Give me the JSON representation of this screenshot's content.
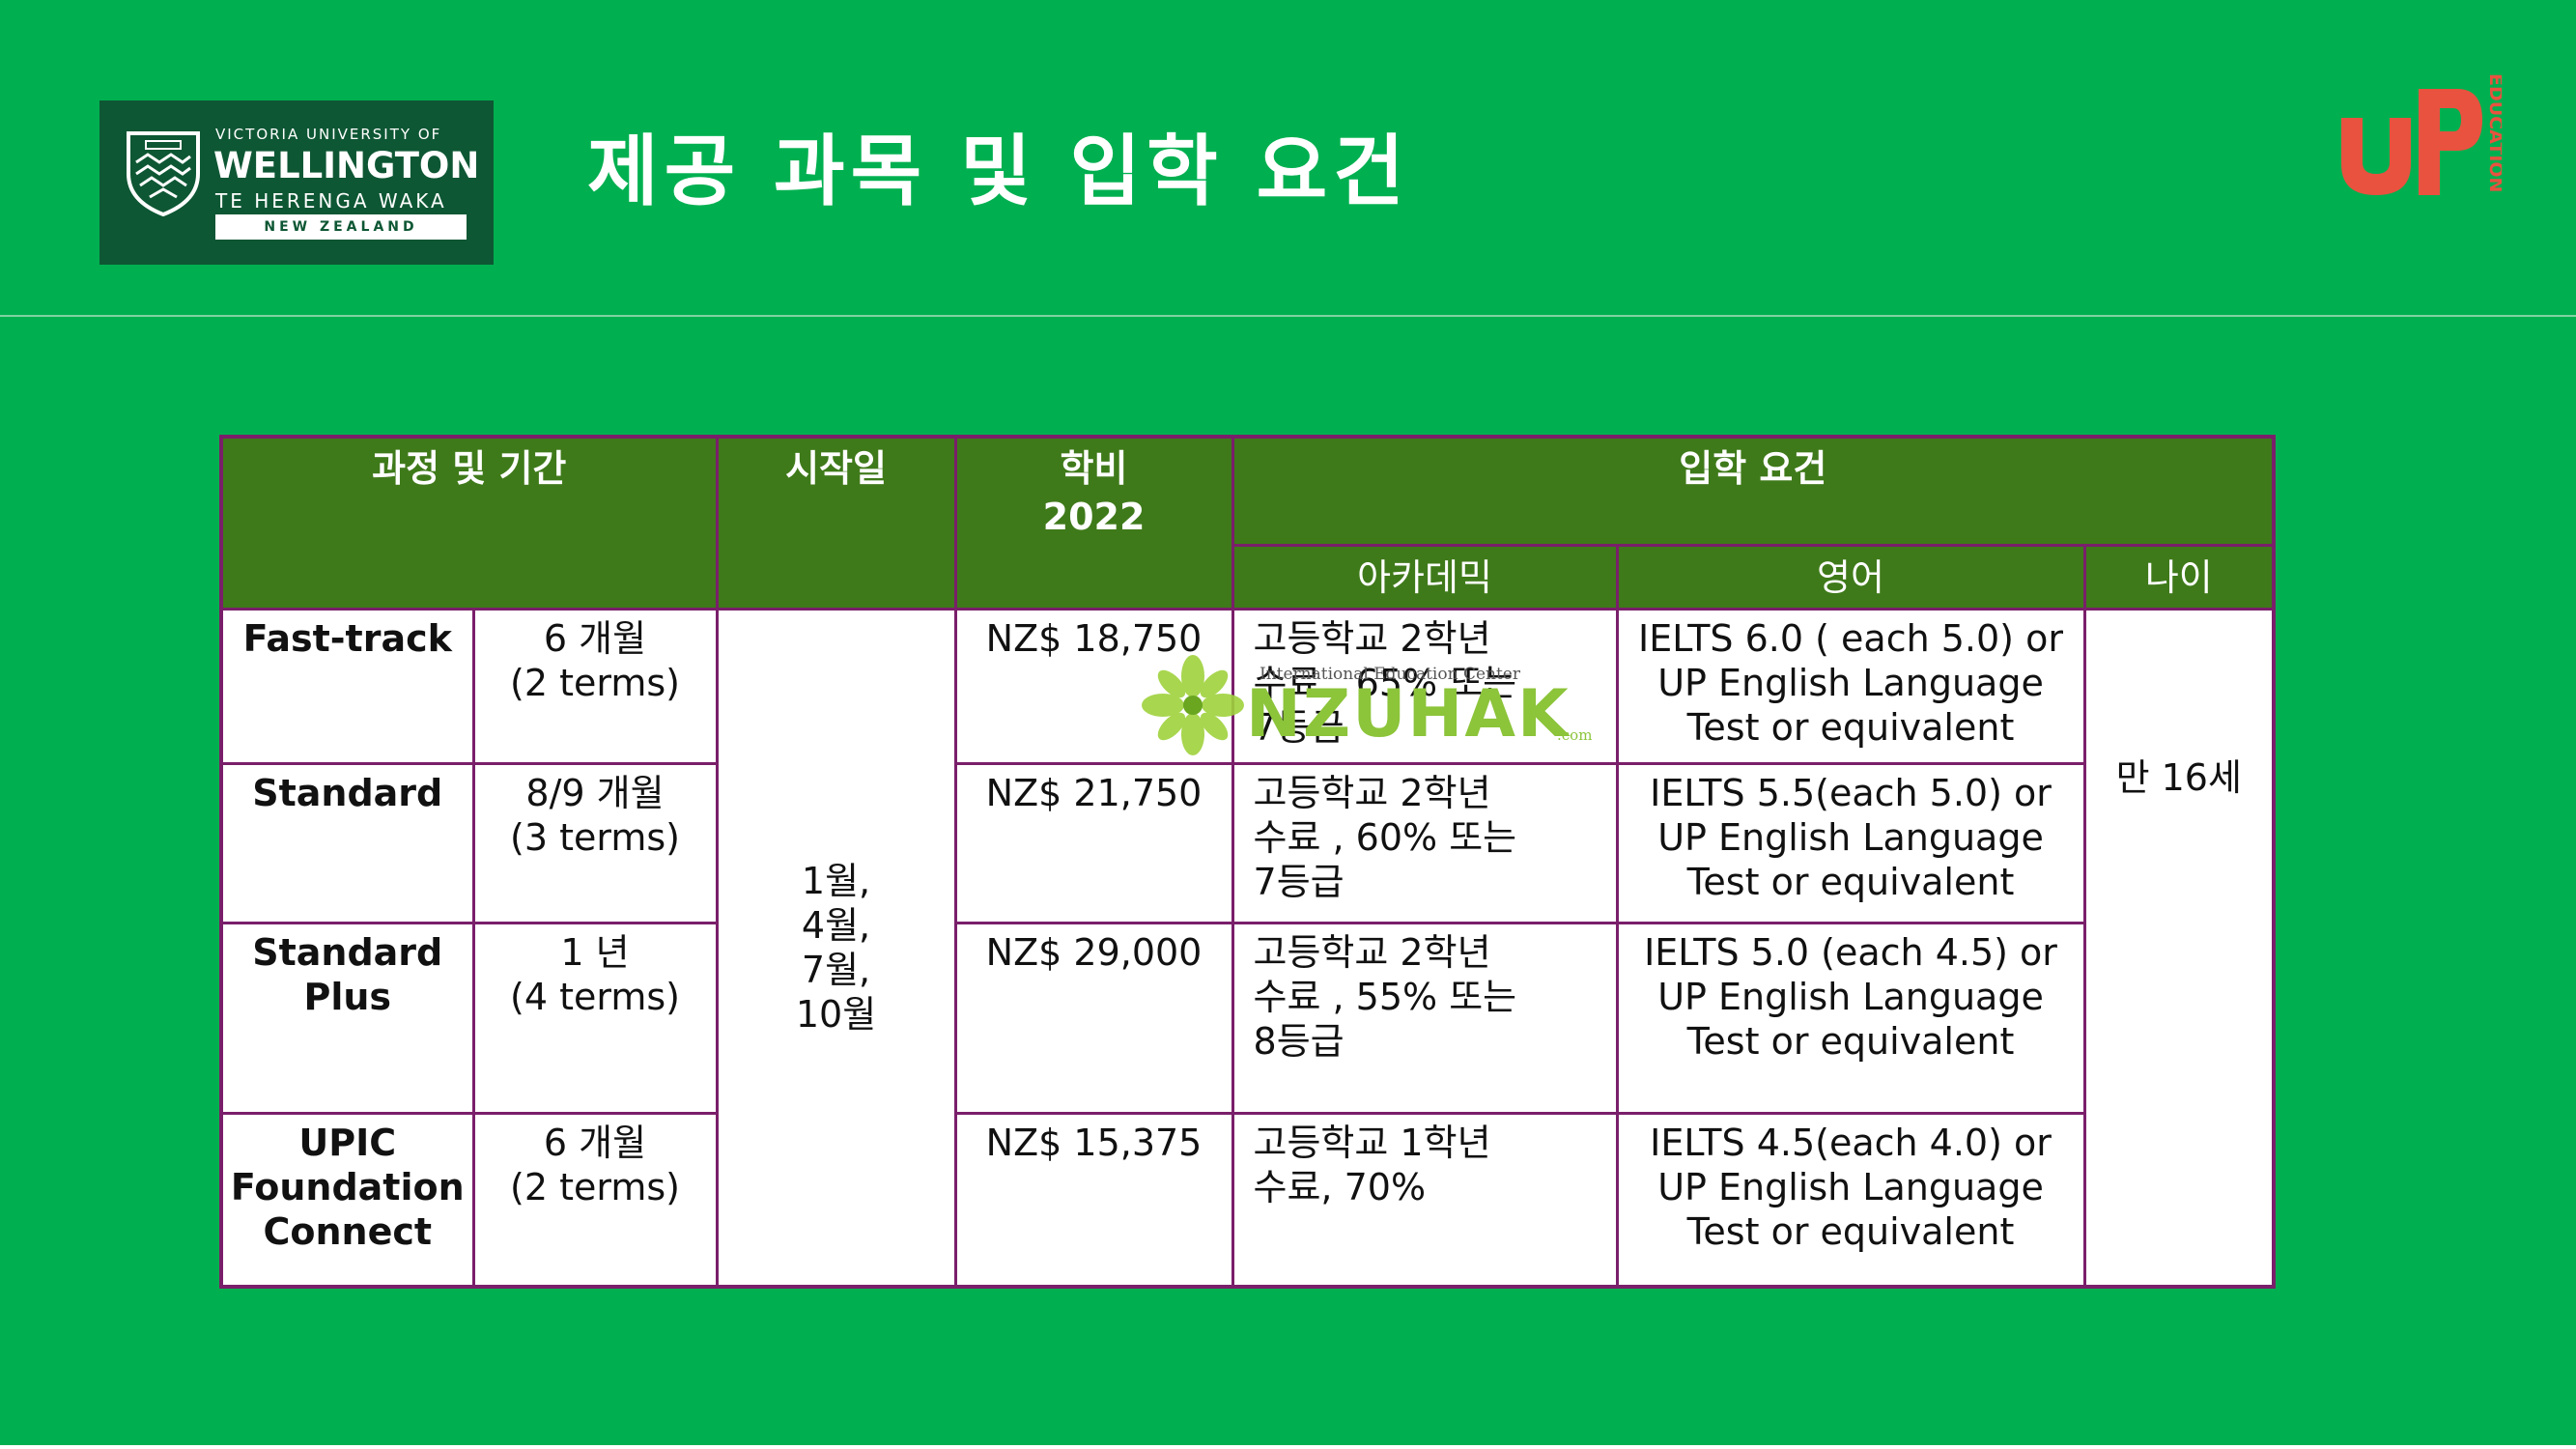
{
  "header": {
    "university_logo": {
      "line1": "VICTORIA UNIVERSITY OF",
      "line2": "WELLINGTON",
      "line3": "TE HERENGA WAKA",
      "line4": "NEW ZEALAND"
    },
    "title": "제공 과목 및 입학 요건",
    "up_logo": {
      "side_text": "EDUCATION"
    }
  },
  "table": {
    "headers": {
      "course": "과정 및 기간",
      "start": "시작일",
      "fee": "학비\n2022",
      "requirements": "입학 요건",
      "academic": "아카데믹",
      "english": "영어",
      "age": "나이"
    },
    "start_dates": "1월,\n4월,\n7월,\n10월",
    "age": "만 16세",
    "rows": [
      {
        "course": "Fast-track",
        "duration": "6 개월\n(2 terms)",
        "fee": "NZ$ 18,750",
        "academic": "고등학교 2학년\n수료 , 65% 또는\n7등급",
        "english": "IELTS 6.0 ( each 5.0)  or\nUP English Language\nTest  or equivalent"
      },
      {
        "course": "Standard",
        "duration": "8/9 개월\n(3 terms)",
        "fee": "NZ$ 21,750",
        "academic": "고등학교 2학년\n수료 , 60% 또는\n7등급",
        "english": "IELTS 5.5(each 5.0) or\nUP English Language\nTest  or equivalent"
      },
      {
        "course": "Standard\nPlus",
        "duration": "1 년\n(4 terms)",
        "fee": "NZ$ 29,000",
        "academic": "고등학교 2학년\n수료 , 55% 또는\n8등급",
        "english": "IELTS 5.0 (each 4.5) or\nUP English Language\nTest  or equivalent"
      },
      {
        "course": "UPIC\nFoundation\nConnect",
        "duration": "6 개월\n(2 terms)",
        "fee": "NZ$ 15,375",
        "academic": "고등학교 1학년\n수료, 70%",
        "english": "IELTS 4.5(each 4.0) or\nUP English Language\nTest  or equivalent"
      }
    ]
  },
  "watermark": {
    "subtitle": "International Education Center",
    "brand": "NZUHAK",
    "suffix": ".com"
  },
  "colors": {
    "background": "#00b050",
    "header_cell": "#3f7a1a",
    "border": "#7a1f6a",
    "logo_green": "#0e5734",
    "up_red": "#e8523f"
  }
}
